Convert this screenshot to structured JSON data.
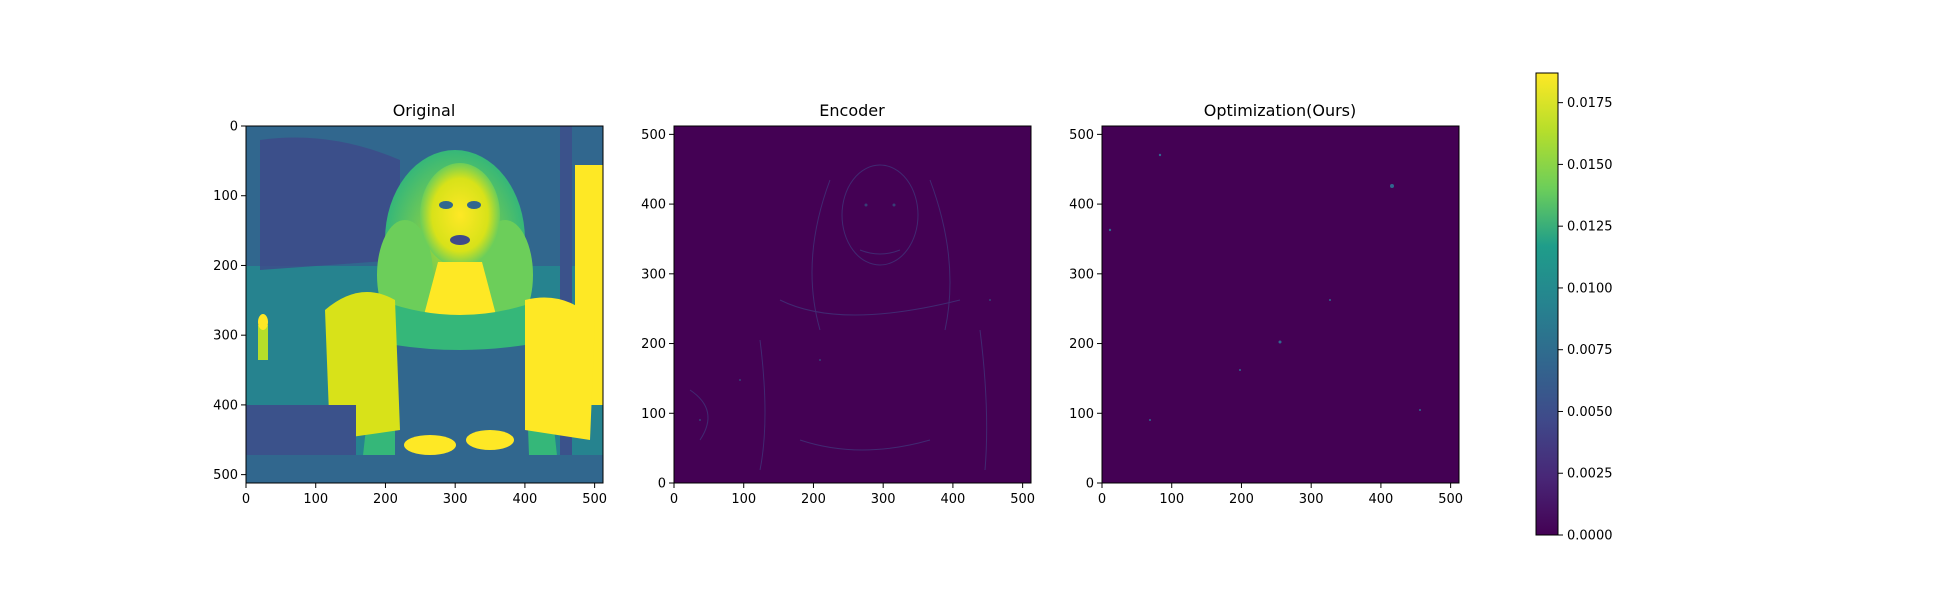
{
  "chart_data": [
    {
      "type": "heatmap",
      "title": "Original",
      "xlim": [
        0,
        512
      ],
      "ylim": [
        512,
        0
      ],
      "xticks": [
        0,
        100,
        200,
        300,
        400,
        500
      ],
      "yticks": [
        0,
        100,
        200,
        300,
        400,
        500
      ],
      "y_axis": "inverted",
      "colormap": "viridis",
      "content": "grayscale portrait of a woman with curly hair shown in viridis colormap"
    },
    {
      "type": "heatmap",
      "title": "Encoder",
      "xlim": [
        0,
        512
      ],
      "ylim": [
        0,
        512
      ],
      "xticks": [
        0,
        100,
        200,
        300,
        400,
        500
      ],
      "yticks": [
        0,
        100,
        200,
        300,
        400,
        500
      ],
      "y_axis": "normal",
      "colormap": "viridis",
      "content": "mostly near-zero error map with faint edge structure of the portrait"
    },
    {
      "type": "heatmap",
      "title": "Optimization(Ours)",
      "xlim": [
        0,
        512
      ],
      "ylim": [
        0,
        512
      ],
      "xticks": [
        0,
        100,
        200,
        300,
        400,
        500
      ],
      "yticks": [
        0,
        100,
        200,
        300,
        400,
        500
      ],
      "y_axis": "normal",
      "colormap": "viridis",
      "content": "near-zero error map with sparse isolated speckles"
    },
    {
      "type": "colorbar",
      "colormap": "viridis",
      "range": [
        0,
        0.0187
      ],
      "ticks": [
        "0.0000",
        "0.0025",
        "0.0050",
        "0.0075",
        "0.0100",
        "0.0125",
        "0.0150",
        "0.0175"
      ]
    }
  ],
  "colors": {
    "viridis": [
      "#440154",
      "#482777",
      "#3f4a8a",
      "#31678e",
      "#26838f",
      "#1f9d8a",
      "#6cce5a",
      "#b6de2b",
      "#fee825"
    ],
    "background_dark": "#440154",
    "axis": "#000000"
  }
}
